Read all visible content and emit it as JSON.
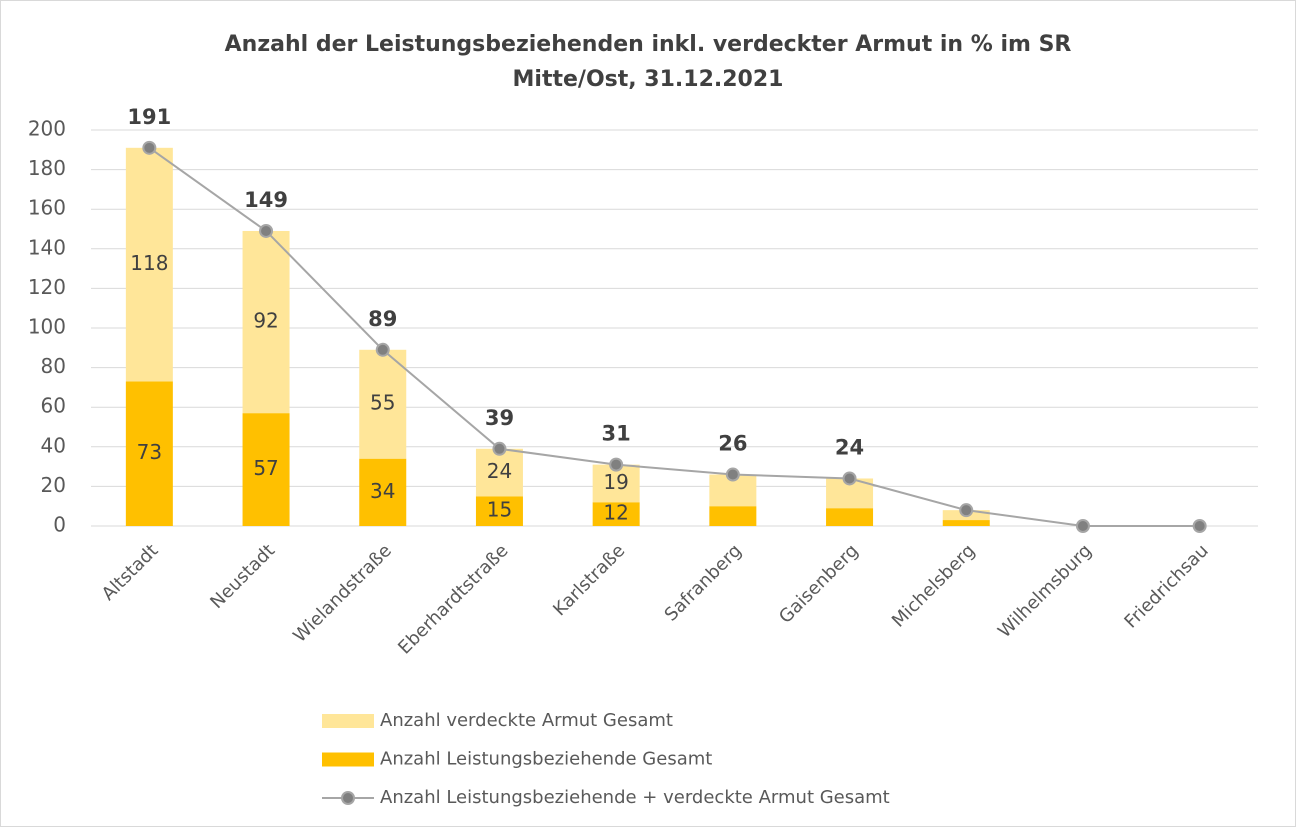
{
  "chart_data": {
    "type": "bar-line",
    "title": [
      "Anzahl der Leistungsbeziehenden inkl. verdeckter Armut in % im SR",
      "Mitte/Ost, 31.12.2021"
    ],
    "categories": [
      "Altstadt",
      "Neustadt",
      "Wielandstraße",
      "Eberhardtstraße",
      "Karlstraße",
      "Safranberg",
      "Gaisenberg",
      "Michelsberg",
      "Wilhelmsburg",
      "Friedrichsau"
    ],
    "series": [
      {
        "name": "Anzahl verdeckte Armut Gesamt",
        "type": "bar",
        "color": "#FFE699",
        "values": [
          118,
          92,
          55,
          24,
          19,
          16,
          15,
          5,
          0,
          0
        ],
        "value_labels": [
          "118",
          "92",
          "55",
          "24",
          "19",
          null,
          null,
          null,
          null,
          null
        ]
      },
      {
        "name": "Anzahl Leistungsbeziehende Gesamt",
        "type": "bar",
        "color": "#FFC000",
        "values": [
          73,
          57,
          34,
          15,
          12,
          10,
          9,
          3,
          0,
          0
        ],
        "value_labels": [
          "73",
          "57",
          "34",
          "15",
          "12",
          null,
          null,
          null,
          null,
          null
        ]
      },
      {
        "name": "Anzahl Leistungsbeziehende + verdeckte Armut Gesamt",
        "type": "line",
        "color": "#A6A6A6",
        "marker_color": "#808080",
        "values": [
          191,
          149,
          89,
          39,
          31,
          26,
          24,
          8,
          0,
          0
        ],
        "value_labels": [
          "191",
          "149",
          "89",
          "39",
          "31",
          "26",
          "24",
          null,
          null,
          null
        ]
      }
    ],
    "stack_order": [
      1,
      0
    ],
    "ylim": [
      0,
      200
    ],
    "yticks": [
      0,
      20,
      40,
      60,
      80,
      100,
      120,
      140,
      160,
      180,
      200
    ],
    "grid": true
  }
}
